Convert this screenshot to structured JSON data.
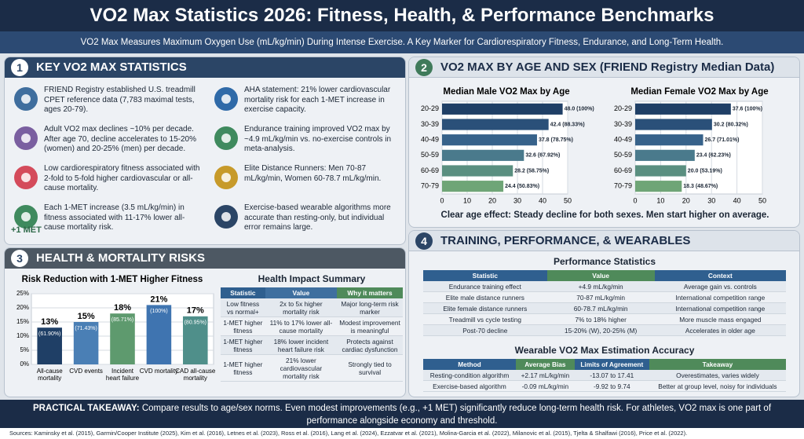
{
  "header": {
    "title": "VO2 Max Statistics 2026: Fitness, Health, & Performance Benchmarks",
    "subtitle": "VO2 Max Measures Maximum Oxygen Use (mL/kg/min) During Intense Exercise. A Key Marker for Cardiorespiratory Fitness, Endurance, and Long-Term Health."
  },
  "panels": [
    {
      "number": 1,
      "title": "KEY VO2 MAX STATISTICS"
    },
    {
      "number": 2,
      "title": "VO2 MAX BY AGE AND SEX (FRIEND Registry Median Data)"
    },
    {
      "number": 3,
      "title": "HEALTH & MORTALITY RISKS"
    },
    {
      "number": 4,
      "title": "TRAINING, PERFORMANCE, & WEARABLES"
    }
  ],
  "statistics": {
    "left": [
      "FRIEND Registry established U.S. treadmill CPET reference data (7,783 maximal tests, ages 20-79).",
      "Adult VO2 max declines ~10% per decade. After age 70, decline accelerates to 15-20% (women) and 20-25% (men) per decade.",
      "Low cardiorespiratory fitness associated with 2-fold to 5-fold higher cardiovascular or all-cause mortality.",
      "Each 1-MET increase (3.5 mL/kg/min) in fitness associated with 11-17% lower all-cause mortality risk."
    ],
    "right": [
      "AHA statement: 21% lower cardiovascular mortality risk for each 1-MET increase in exercise capacity.",
      "Endurance training improved VO2 max by ~4.9 mL/kg/min vs. no-exercise controls in meta-analysis.",
      "Elite Distance Runners: Men 70-87 mL/kg/min, Women 60-78.7 mL/kg/min.",
      "Exercise-based wearable algorithms more accurate than resting-only, but individual error remains large."
    ],
    "met_label": "+1 MET"
  },
  "age_caption": "Clear age effect: Steady decline for both sexes. Men start higher on average.",
  "chart_data": [
    {
      "type": "bar",
      "orientation": "horizontal",
      "title": "Median Male VO2 Max by Age",
      "categories": [
        "20-29",
        "30-39",
        "40-49",
        "50-59",
        "60-69",
        "70-79"
      ],
      "values": [
        48.0,
        42.4,
        37.8,
        32.6,
        28.2,
        24.4
      ],
      "value_labels": [
        "48.0 (100%)",
        "42.4 (88.33%)",
        "37.8 (78.75%)",
        "32.6 (67.92%)",
        "28.2 (58.75%)",
        "24.4 (50.83%)"
      ],
      "colors": [
        "#1f3f66",
        "#2a5079",
        "#37628a",
        "#4a7a8c",
        "#5a8f80",
        "#6fa577"
      ],
      "xlim": [
        0,
        50
      ],
      "xticks": [
        0,
        10,
        20,
        30,
        40,
        50
      ],
      "grid": true
    },
    {
      "type": "bar",
      "orientation": "horizontal",
      "title": "Median Female VO2 Max by Age",
      "categories": [
        "20-29",
        "30-39",
        "40-49",
        "50-59",
        "60-69",
        "70-79"
      ],
      "values": [
        37.6,
        30.2,
        26.7,
        23.4,
        20.0,
        18.3
      ],
      "value_labels": [
        "37.6 (100%)",
        "30.2 (80.32%)",
        "26.7 (71.01%)",
        "23.4 (62.23%)",
        "20.0 (53.19%)",
        "18.3 (48.67%)"
      ],
      "colors": [
        "#1f3f66",
        "#2a5079",
        "#37628a",
        "#4a7a8c",
        "#5a8f80",
        "#6fa577"
      ],
      "xlim": [
        0,
        50
      ],
      "xticks": [
        0,
        10,
        20,
        30,
        40,
        50
      ],
      "grid": true
    },
    {
      "type": "bar",
      "orientation": "vertical",
      "title": "Risk Reduction with 1-MET Higher Fitness",
      "categories": [
        "All-cause mortality",
        "CVD events",
        "Incident heart failure",
        "CVD mortality",
        "CAD all-cause mortality"
      ],
      "values": [
        13,
        15,
        18,
        21,
        17
      ],
      "value_labels": [
        "13%",
        "15%",
        "18%",
        "21%",
        "17%"
      ],
      "sub_labels": [
        "(61.90%)",
        "(71.43%)",
        "(85.71%)",
        "(100%)",
        "(80.95%)"
      ],
      "colors": [
        "#1f3f66",
        "#4a7fb5",
        "#5e9a6e",
        "#3f74b0",
        "#4f8f8a"
      ],
      "ylim": [
        0,
        25
      ],
      "yticks": [
        {
          "value": 0,
          "label": "0%"
        },
        {
          "value": 5,
          "label": "5%"
        },
        {
          "value": 10,
          "label": "10%"
        },
        {
          "value": 15,
          "label": "15%"
        },
        {
          "value": 20,
          "label": "20%"
        },
        {
          "value": 25,
          "label": "25%"
        }
      ],
      "grid": true
    }
  ],
  "health_table": {
    "title": "Health Impact Summary",
    "headers": [
      "Statistic",
      "Value",
      "Why it matters"
    ],
    "rows": [
      [
        "Low fitness vs normal+",
        "2x to 5x higher mortality risk",
        "Major long-term risk marker"
      ],
      [
        "1-MET higher fitness",
        "11% to 17% lower all-cause mortality",
        "Modest improvement is meaningful"
      ],
      [
        "1-MET higher fitness",
        "18% lower incident heart failure risk",
        "Protects against cardiac dysfunction"
      ],
      [
        "1-MET higher fitness",
        "21% lower cardiovascular mortality risk",
        "Strongly tied to survival"
      ]
    ]
  },
  "performance_table": {
    "title": "Performance Statistics",
    "headers": [
      "Statistic",
      "Value",
      "Context"
    ],
    "rows": [
      [
        "Endurance training effect",
        "+4.9 mL/kg/min",
        "Average gain vs. controls"
      ],
      [
        "Elite male distance runners",
        "70-87 mL/kg/min",
        "International competition range"
      ],
      [
        "Elite female distance runners",
        "60-78.7 mL/kg/min",
        "International competition range"
      ],
      [
        "Treadmill vs cycle testing",
        "7% to 18% higher",
        "More muscle mass engaged"
      ],
      [
        "Post-70 decline",
        "15-20% (W), 20-25% (M)",
        "Accelerates in older age"
      ]
    ]
  },
  "wearable_table": {
    "title": "Wearable VO2 Max Estimation Accuracy",
    "headers": [
      "Method",
      "Average Bias",
      "Limits of Agreement",
      "Takeaway"
    ],
    "rows": [
      [
        "Resting-condition algorithm",
        "+2.17 mL/kg/min",
        "-13.07 to 17.41",
        "Overestimates, varies widely"
      ],
      [
        "Exercise-based algorithm",
        "-0.09 mL/kg/min",
        "-9.92 to 9.74",
        "Better at group level, noisy for individuals"
      ]
    ]
  },
  "takeaway": {
    "label": "PRACTICAL TAKEAWAY:",
    "text": "Compare results to age/sex norms. Even modest improvements (e.g., +1 MET) significantly reduce long-term health risk. For athletes, VO2 max is one part of performance alongside economy and threshold."
  },
  "sources": "Sources: Kaminsky et al. (2015), Garmin/Cooper Institute (2025), Kim et al. (2016), Letnes et al. (2023), Ross et al. (2016), Lang et al. (2024), Ezzatvar et al. (2021), Molina-Garcia et al. (2022), Milanovic et al. (2015), Tjelta & Shalfawi (2016), Price et al. (2022)."
}
